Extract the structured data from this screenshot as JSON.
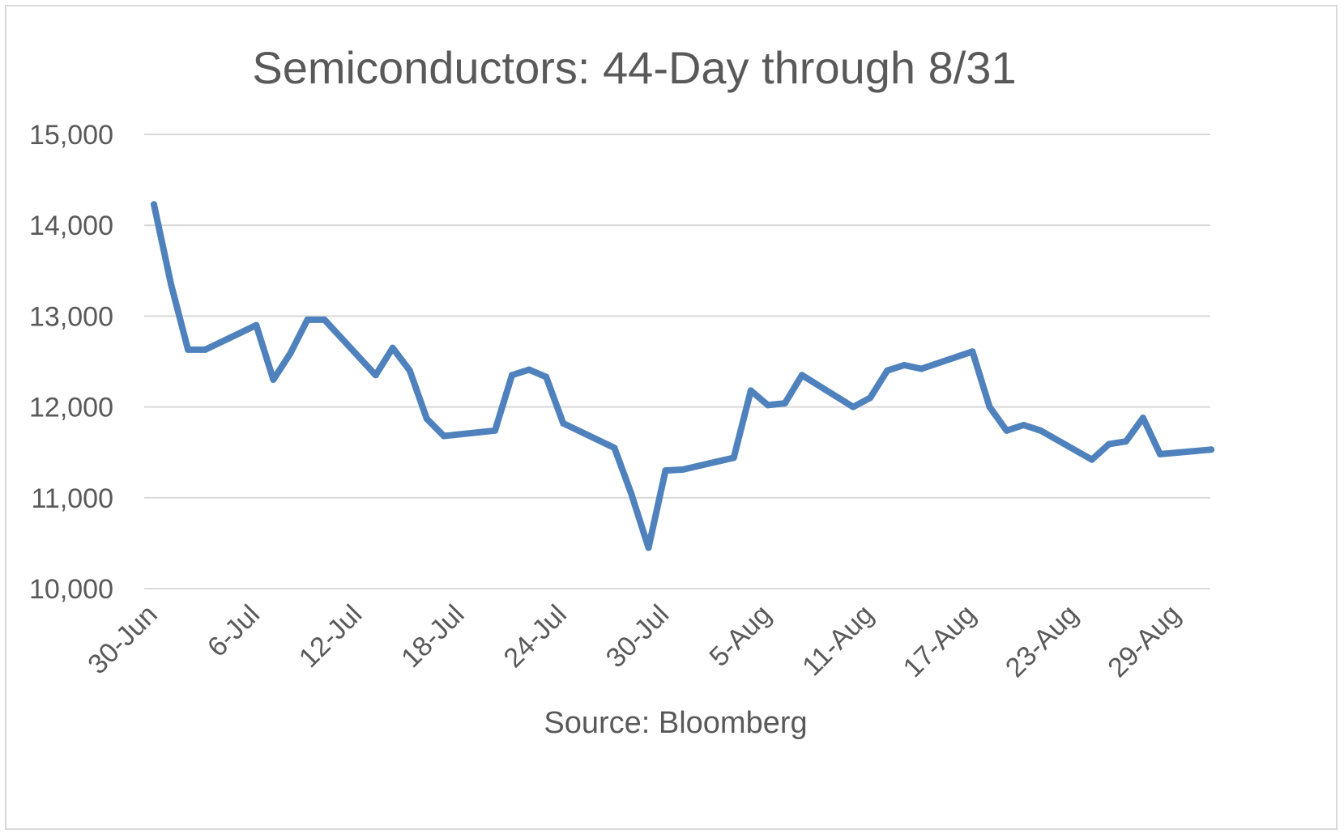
{
  "chart_data": {
    "type": "line",
    "title": "Semiconductors: 44-Day through 8/31",
    "xlabel": "Source: Bloomberg",
    "ylabel": "",
    "ylim": [
      10000,
      15000
    ],
    "yticks": [
      10000,
      11000,
      12000,
      13000,
      14000,
      15000
    ],
    "ytick_labels": [
      "10,000",
      "11,000",
      "12,000",
      "13,000",
      "14,000",
      "15,000"
    ],
    "xlim": [
      "2023-06-30",
      "2023-09-01"
    ],
    "xtick_dates": [
      "2023-06-30",
      "2023-07-06",
      "2023-07-12",
      "2023-07-18",
      "2023-07-24",
      "2023-07-30",
      "2023-08-05",
      "2023-08-11",
      "2023-08-17",
      "2023-08-23",
      "2023-08-29"
    ],
    "xtick_labels": [
      "30-Jun",
      "6-Jul",
      "12-Jul",
      "18-Jul",
      "24-Jul",
      "30-Jul",
      "5-Aug",
      "11-Aug",
      "17-Aug",
      "23-Aug",
      "29-Aug"
    ],
    "grid": true,
    "legend": "none",
    "color": "#4f81bd",
    "series": [
      {
        "x": [
          "2023-06-30",
          "2023-07-01",
          "2023-07-02",
          "2023-07-03",
          "2023-07-06",
          "2023-07-07",
          "2023-07-08",
          "2023-07-09",
          "2023-07-10",
          "2023-07-13",
          "2023-07-14",
          "2023-07-15",
          "2023-07-16",
          "2023-07-17",
          "2023-07-20",
          "2023-07-21",
          "2023-07-22",
          "2023-07-23",
          "2023-07-24",
          "2023-07-27",
          "2023-07-28",
          "2023-07-29",
          "2023-07-30",
          "2023-07-31",
          "2023-08-03",
          "2023-08-04",
          "2023-08-05",
          "2023-08-06",
          "2023-08-07",
          "2023-08-10",
          "2023-08-11",
          "2023-08-12",
          "2023-08-13",
          "2023-08-14",
          "2023-08-17",
          "2023-08-18",
          "2023-08-19",
          "2023-08-20",
          "2023-08-21",
          "2023-08-24",
          "2023-08-25",
          "2023-08-26",
          "2023-08-27",
          "2023-08-28",
          "2023-08-31"
        ],
        "values": [
          14230,
          13350,
          12630,
          12630,
          12900,
          12300,
          12590,
          12960,
          12960,
          12350,
          12650,
          12400,
          11870,
          11680,
          11740,
          12350,
          12410,
          12330,
          11820,
          11550,
          11040,
          10450,
          11300,
          11310,
          11440,
          12180,
          12020,
          12040,
          12350,
          12000,
          12100,
          12400,
          12460,
          12420,
          12610,
          12000,
          11740,
          11800,
          11740,
          11420,
          11590,
          11620,
          11880,
          11480,
          11530
        ]
      }
    ]
  }
}
